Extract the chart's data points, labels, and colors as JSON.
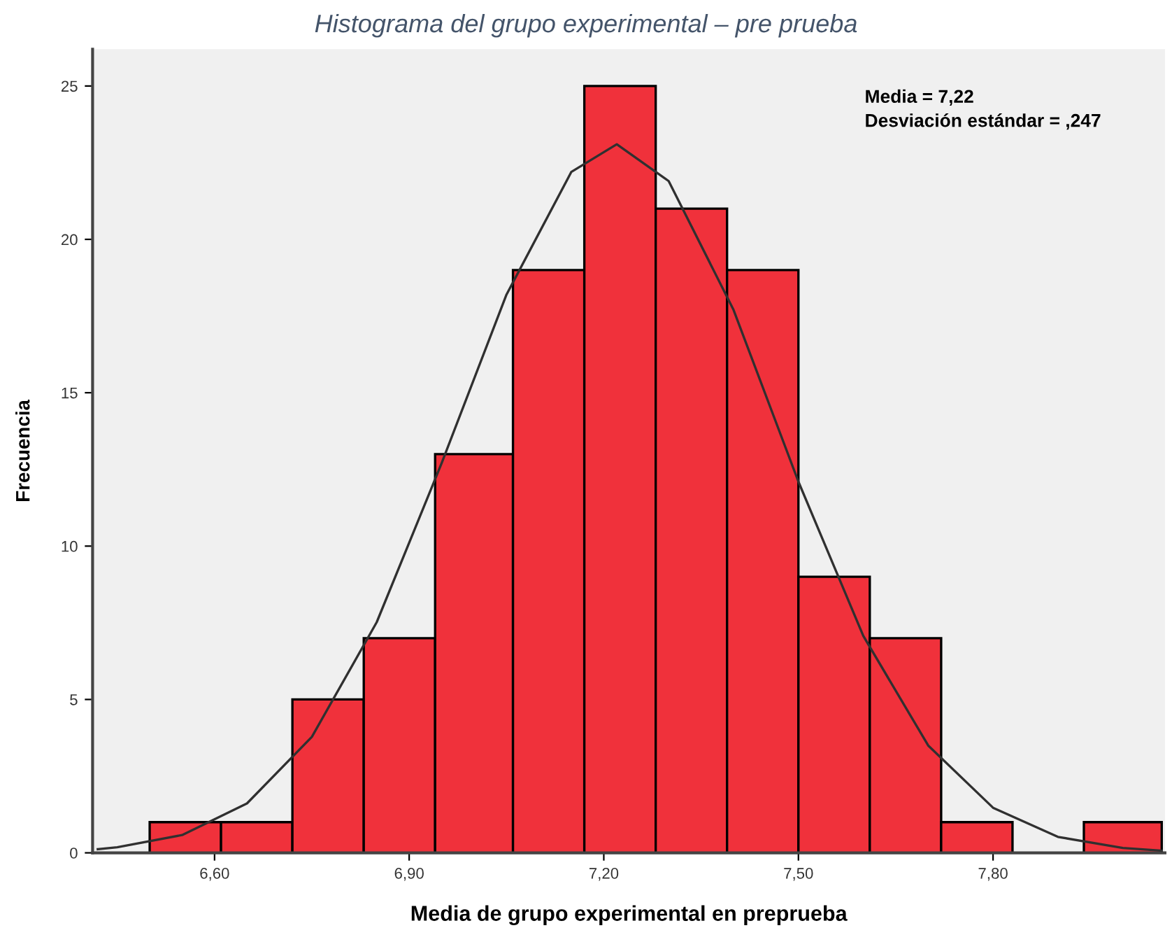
{
  "chart_data": [
    {
      "type": "histogram",
      "title": "Histograma del grupo experimental – pre prueba",
      "xlabel": "Media de grupo experimental en preprueba",
      "ylabel": "Frecuencia",
      "bins": [
        6.5,
        6.61,
        6.72,
        6.83,
        6.94,
        7.06,
        7.17,
        7.28,
        7.39,
        7.5,
        7.61,
        7.72,
        7.83,
        7.94,
        8.06
      ],
      "values": [
        1,
        1,
        5,
        7,
        13,
        19,
        25,
        21,
        19,
        9,
        7,
        1,
        0,
        1
      ],
      "color": "#f0313b",
      "series": [
        {
          "type": "line",
          "color": "#303030",
          "x": [
            6.42,
            6.45,
            6.55,
            6.65,
            6.75,
            6.85,
            6.95,
            7.05,
            7.15,
            7.22,
            7.3,
            7.4,
            7.5,
            7.6,
            7.7,
            7.8,
            7.9,
            8.0,
            8.06
          ],
          "values": [
            0.12,
            0.18,
            0.58,
            1.61,
            3.78,
            7.52,
            12.7,
            18.2,
            22.2,
            23.1,
            21.9,
            17.7,
            12.1,
            7.07,
            3.5,
            1.47,
            0.52,
            0.16,
            0.07
          ]
        }
      ],
      "annotations": [
        "Media = 7,22",
        "Desviación estándar = ,247"
      ],
      "xlim": [
        6.412,
        8.065
      ],
      "ylim": [
        0,
        26.2
      ],
      "xticks": [
        {
          "value": 6.6,
          "label": "6,60"
        },
        {
          "value": 6.9,
          "label": "6,90"
        },
        {
          "value": 7.2,
          "label": "7,20"
        },
        {
          "value": 7.5,
          "label": "7,50"
        },
        {
          "value": 7.8,
          "label": "7,80"
        }
      ],
      "yticks": [
        0,
        5,
        10,
        15,
        20,
        25
      ],
      "grid": false
    }
  ]
}
